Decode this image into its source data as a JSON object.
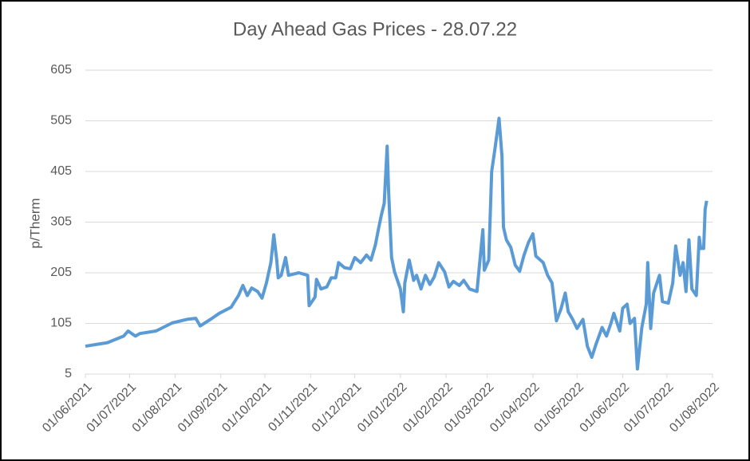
{
  "chart_data": {
    "type": "line",
    "title": "Day Ahead Gas Prices - 28.07.22",
    "y_label": "p/Therm",
    "x": [
      "2021-06-01",
      "2021-06-16",
      "2021-06-27",
      "2021-06-30",
      "2021-07-05",
      "2021-07-08",
      "2021-07-19",
      "2021-07-30",
      "2021-08-09",
      "2021-08-15",
      "2021-08-18",
      "2021-08-26",
      "2021-08-31",
      "2021-09-08",
      "2021-09-13",
      "2021-09-16",
      "2021-09-19",
      "2021-09-22",
      "2021-09-26",
      "2021-09-29",
      "2021-10-02",
      "2021-10-05",
      "2021-10-07",
      "2021-10-09",
      "2021-10-10",
      "2021-10-12",
      "2021-10-15",
      "2021-10-17",
      "2021-10-24",
      "2021-10-30",
      "2021-10-31",
      "2021-11-04",
      "2021-11-05",
      "2021-11-08",
      "2021-11-12",
      "2021-11-15",
      "2021-11-18",
      "2021-11-20",
      "2021-11-24",
      "2021-11-28",
      "2021-12-01",
      "2021-12-05",
      "2021-12-09",
      "2021-12-12",
      "2021-12-15",
      "2021-12-17",
      "2021-12-19",
      "2021-12-21",
      "2021-12-23",
      "2021-12-24",
      "2021-12-26",
      "2021-12-28",
      "2022-01-01",
      "2022-01-03",
      "2022-01-04",
      "2022-01-07",
      "2022-01-10",
      "2022-01-12",
      "2022-01-15",
      "2022-01-18",
      "2022-01-21",
      "2022-01-24",
      "2022-01-27",
      "2022-01-31",
      "2022-02-03",
      "2022-02-06",
      "2022-02-10",
      "2022-02-13",
      "2022-02-17",
      "2022-02-22",
      "2022-02-26",
      "2022-02-27",
      "2022-03-02",
      "2022-03-04",
      "2022-03-06",
      "2022-03-08",
      "2022-03-09",
      "2022-03-11",
      "2022-03-12",
      "2022-03-14",
      "2022-03-17",
      "2022-03-20",
      "2022-03-23",
      "2022-03-26",
      "2022-03-29",
      "2022-04-01",
      "2022-04-03",
      "2022-04-08",
      "2022-04-11",
      "2022-04-14",
      "2022-04-17",
      "2022-04-20",
      "2022-04-23",
      "2022-04-25",
      "2022-04-28",
      "2022-05-01",
      "2022-05-05",
      "2022-05-08",
      "2022-05-11",
      "2022-05-14",
      "2022-05-18",
      "2022-05-21",
      "2022-05-24",
      "2022-05-26",
      "2022-05-30",
      "2022-06-01",
      "2022-06-04",
      "2022-06-06",
      "2022-06-09",
      "2022-06-11",
      "2022-06-14",
      "2022-06-17",
      "2022-06-18",
      "2022-06-20",
      "2022-06-22",
      "2022-06-26",
      "2022-06-28",
      "2022-07-02",
      "2022-07-05",
      "2022-07-07",
      "2022-07-10",
      "2022-07-12",
      "2022-07-14",
      "2022-07-16",
      "2022-07-18",
      "2022-07-21",
      "2022-07-23",
      "2022-07-24",
      "2022-07-26",
      "2022-07-27",
      "2022-07-28"
    ],
    "series": [
      {
        "name": "Day Ahead",
        "color": "#5b9bd5",
        "values": [
          60,
          67,
          80,
          90,
          80,
          85,
          90,
          106,
          113,
          115,
          100,
          115,
          125,
          137,
          160,
          180,
          160,
          175,
          168,
          155,
          185,
          225,
          280,
          230,
          195,
          200,
          235,
          200,
          205,
          200,
          140,
          157,
          192,
          173,
          177,
          195,
          195,
          225,
          215,
          213,
          235,
          225,
          240,
          230,
          260,
          290,
          318,
          342,
          455,
          365,
          235,
          207,
          173,
          128,
          185,
          230,
          190,
          200,
          173,
          200,
          182,
          197,
          225,
          207,
          177,
          188,
          180,
          190,
          173,
          168,
          290,
          210,
          230,
          405,
          445,
          488,
          510,
          435,
          295,
          270,
          255,
          220,
          208,
          240,
          265,
          282,
          238,
          225,
          200,
          185,
          110,
          133,
          165,
          128,
          113,
          95,
          113,
          60,
          38,
          65,
          97,
          80,
          105,
          125,
          90,
          135,
          143,
          105,
          115,
          15,
          97,
          143,
          225,
          95,
          165,
          200,
          148,
          145,
          185,
          258,
          200,
          225,
          168,
          270,
          173,
          160,
          275,
          253,
          253,
          330,
          347
        ]
      }
    ],
    "xlim": [
      "2021-06-01",
      "2022-08-01"
    ],
    "xticks": [
      {
        "value": "2021-06-01",
        "label": "01/06/2021"
      },
      {
        "value": "2021-07-01",
        "label": "01/07/2021"
      },
      {
        "value": "2021-08-01",
        "label": "01/08/2021"
      },
      {
        "value": "2021-09-01",
        "label": "01/09/2021"
      },
      {
        "value": "2021-10-01",
        "label": "01/10/2021"
      },
      {
        "value": "2021-11-01",
        "label": "01/11/2021"
      },
      {
        "value": "2021-12-01",
        "label": "01/12/2021"
      },
      {
        "value": "2022-01-01",
        "label": "01/01/2022"
      },
      {
        "value": "2022-02-01",
        "label": "01/02/2022"
      },
      {
        "value": "2022-03-01",
        "label": "01/03/2022"
      },
      {
        "value": "2022-04-01",
        "label": "01/04/2022"
      },
      {
        "value": "2022-05-01",
        "label": "01/05/2022"
      },
      {
        "value": "2022-06-01",
        "label": "01/06/2022"
      },
      {
        "value": "2022-07-01",
        "label": "01/07/2022"
      },
      {
        "value": "2022-08-01",
        "label": "01/08/2022"
      }
    ],
    "ylim": [
      5,
      605
    ],
    "yticks": [
      5,
      105,
      205,
      305,
      405,
      505,
      605
    ],
    "grid": true
  }
}
